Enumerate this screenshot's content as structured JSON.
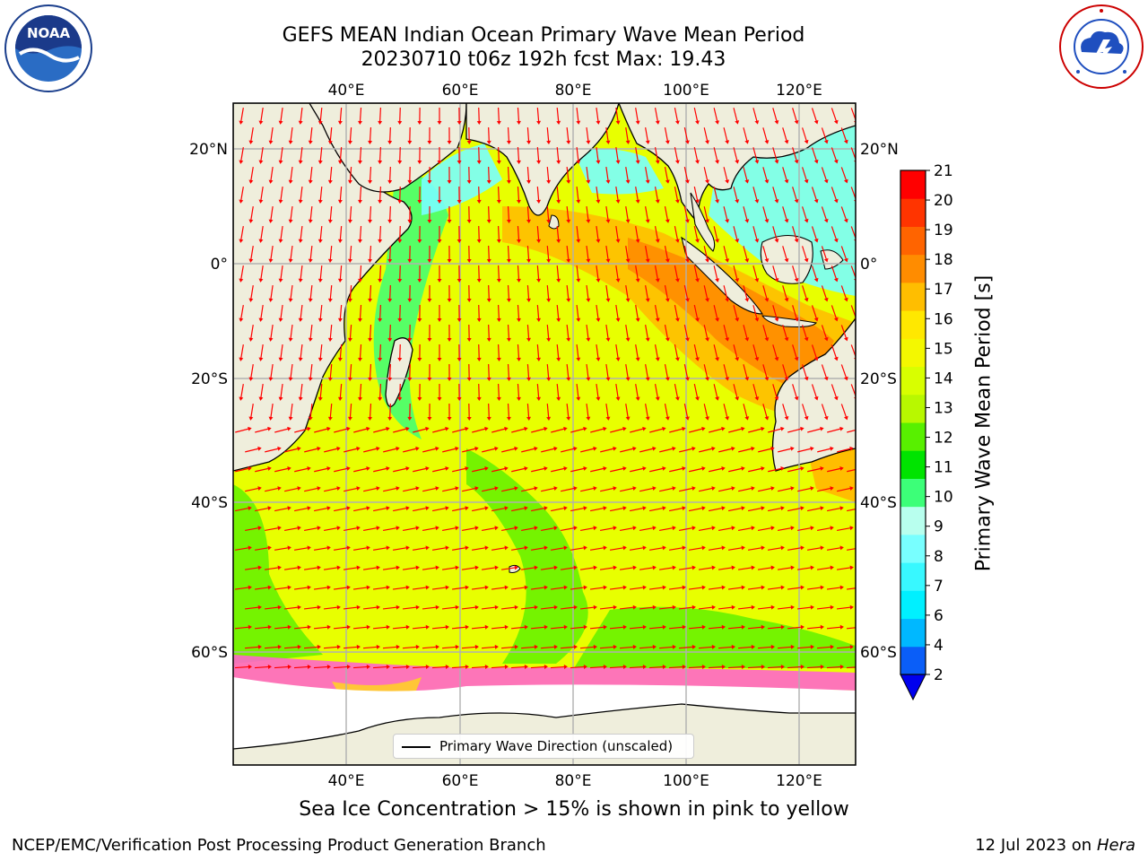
{
  "title": {
    "line1": "GEFS MEAN Indian Ocean Primary Wave Mean Period",
    "line2": "20230710 t06z 192h fcst   Max: 19.43"
  },
  "logos": {
    "noaa": {
      "text": "NOAA",
      "icon": "noaa-logo"
    },
    "nws": {
      "icon": "nws-logo"
    }
  },
  "map": {
    "lon_ticks": [
      "40°E",
      "60°E",
      "80°E",
      "100°E",
      "120°E"
    ],
    "lat_ticks": [
      "20°N",
      "0°",
      "20°S",
      "40°S",
      "60°S"
    ],
    "land_color": "#efeedc",
    "arrow_color": "#ff0000"
  },
  "colorbar": {
    "label": "Primary Wave Mean Period [s]",
    "ticks": [
      "2",
      "4",
      "6",
      "7",
      "8",
      "9",
      "10",
      "11",
      "12",
      "13",
      "14",
      "15",
      "16",
      "17",
      "18",
      "19",
      "20",
      "21"
    ],
    "colors": [
      "#0a5ef8",
      "#00b8ff",
      "#00f0ff",
      "#38f8ff",
      "#78ffff",
      "#b8ffee",
      "#3cff78",
      "#00e400",
      "#58f000",
      "#b8f800",
      "#d8ff00",
      "#f4f800",
      "#ffe800",
      "#ffbe00",
      "#ff8c00",
      "#ff6400",
      "#ff3400",
      "#ff0000"
    ],
    "under_color": "#0000ee"
  },
  "legend": {
    "label": "Primary Wave Direction (unscaled)"
  },
  "caption": "Sea Ice Concentration > 15% is shown in pink to yellow",
  "footer": {
    "left": "NCEP/EMC/Verification Post Processing Product Generation Branch",
    "right_date": "12 Jul 2023 on ",
    "right_host": "Hera"
  }
}
